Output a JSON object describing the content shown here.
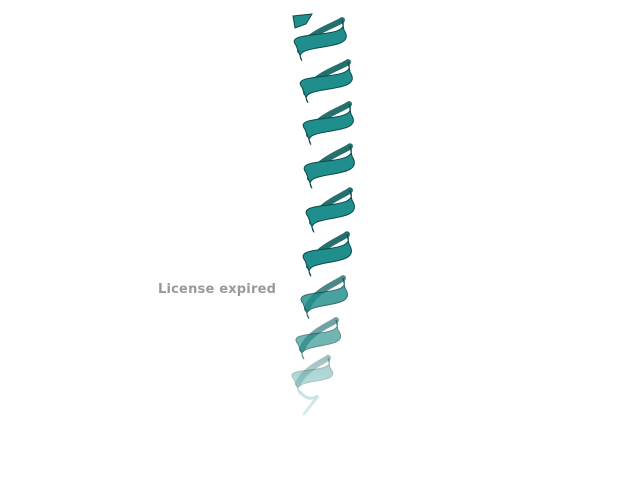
{
  "watermark": {
    "text": "License expired",
    "color": "#9a9a9a"
  },
  "structure": {
    "representation": "cartoon-alpha-helix",
    "colors": {
      "front": "#1f8e8c",
      "back": "#0d5f5e",
      "edge": "#0a4a49",
      "fog": "#ffffff"
    }
  }
}
